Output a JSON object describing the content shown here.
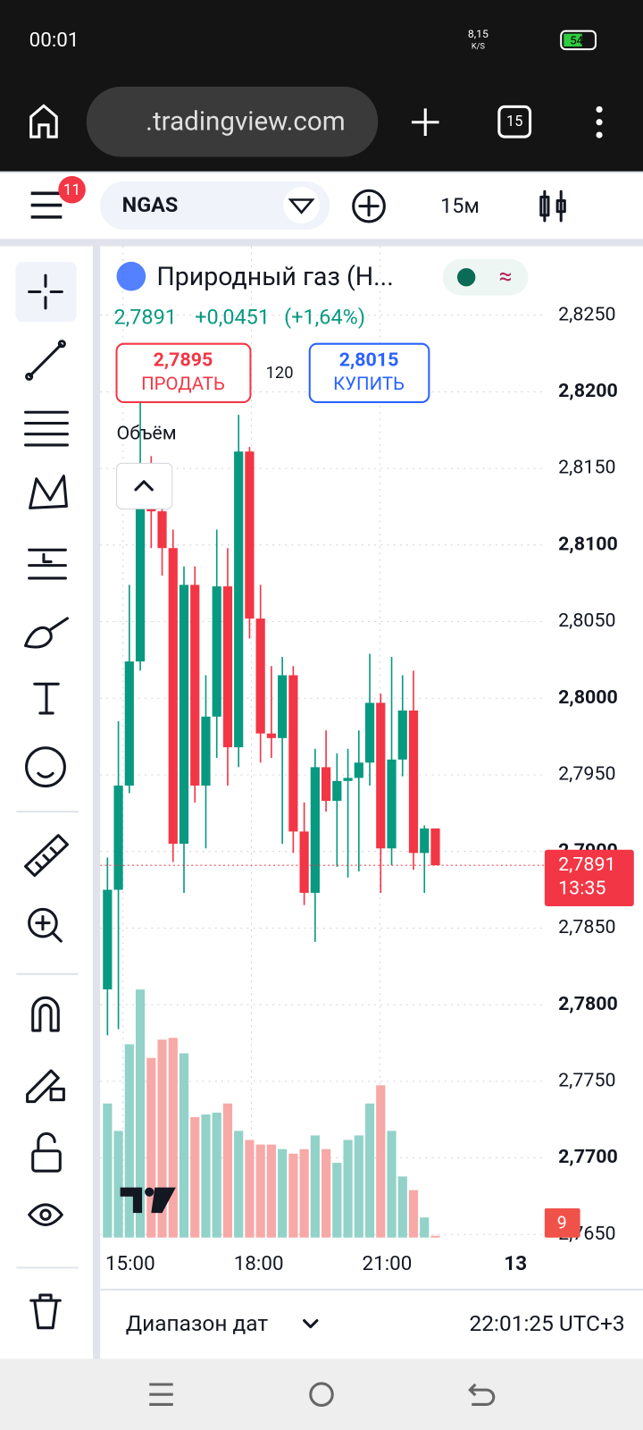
{
  "status_bar": {
    "time": "00:01",
    "speed": "8,15",
    "speed_unit": "K/S",
    "battery": "54"
  },
  "browser": {
    "url": ".tradingview.com",
    "tabs": "15"
  },
  "toolbar": {
    "badge": "11",
    "symbol": "NGAS",
    "interval": "15м"
  },
  "legend": {
    "title": "Природный газ (Н...",
    "price": "2,7891",
    "change": "+0,0451",
    "change_pct": "(+1,64%)",
    "sell_price": "2,7895",
    "sell_label": "ПРОДАТЬ",
    "spread": "120",
    "buy_price": "2,8015",
    "buy_label": "КУПИТЬ",
    "volume_label": "Объём"
  },
  "chart_data": {
    "type": "candlestick",
    "open": [
      2.781,
      2.7875,
      2.7943,
      2.8024,
      2.8129,
      2.8122,
      2.8098,
      2.7905,
      2.8074,
      2.7943,
      2.7988,
      2.8073,
      2.7968,
      2.8161,
      2.8052,
      2.7977,
      2.7974,
      2.8015,
      2.7913,
      2.7873,
      2.7955,
      2.7933,
      2.7946,
      2.7948,
      2.7958,
      2.7997,
      2.7902,
      2.796,
      2.7992,
      2.7899,
      2.7915
    ],
    "high": [
      2.7896,
      2.7985,
      2.8074,
      2.8193,
      2.8158,
      2.8134,
      2.811,
      2.8086,
      2.8086,
      2.8015,
      2.811,
      2.8098,
      2.8185,
      2.8164,
      2.8074,
      2.8021,
      2.8027,
      2.8021,
      2.7932,
      2.7967,
      2.7979,
      2.7964,
      2.7967,
      2.7979,
      2.8029,
      2.8003,
      2.8027,
      2.8015,
      2.8018,
      2.7917,
      2.7915
    ],
    "low": [
      2.778,
      2.7784,
      2.7938,
      2.8018,
      2.8098,
      2.808,
      2.7893,
      2.7873,
      2.7932,
      2.7902,
      2.7961,
      2.7943,
      2.7955,
      2.8039,
      2.7958,
      2.7961,
      2.7905,
      2.7899,
      2.7865,
      2.7841,
      2.7926,
      2.789,
      2.7883,
      2.7887,
      2.7943,
      2.7873,
      2.7891,
      2.7949,
      2.7888,
      2.7873,
      2.7891
    ],
    "close": [
      2.7875,
      2.7943,
      2.8024,
      2.8129,
      2.8122,
      2.8098,
      2.7905,
      2.8074,
      2.7943,
      2.7988,
      2.8073,
      2.7968,
      2.8161,
      2.8052,
      2.7977,
      2.7974,
      2.8015,
      2.7913,
      2.7873,
      2.7955,
      2.7933,
      2.7946,
      2.7948,
      2.7958,
      2.7997,
      2.7902,
      2.796,
      2.7992,
      2.7899,
      2.7915,
      2.7891
    ],
    "volume": [
      147,
      117,
      212,
      272,
      197,
      217,
      219,
      202,
      132,
      135,
      137,
      147,
      117,
      107,
      102,
      102,
      97,
      92,
      97,
      112,
      97,
      82,
      107,
      112,
      147,
      167,
      117,
      67,
      52,
      22,
      2
    ],
    "volume_lim": [
      0,
      1087
    ],
    "ylim": [
      2.7648,
      2.8295
    ],
    "yticks": [
      {
        "value": 2.825,
        "label": "2,8250"
      },
      {
        "value": 2.82,
        "label": "2,8200"
      },
      {
        "value": 2.815,
        "label": "2,8150"
      },
      {
        "value": 2.81,
        "label": "2,8100"
      },
      {
        "value": 2.805,
        "label": "2,8050"
      },
      {
        "value": 2.8,
        "label": "2,8000"
      },
      {
        "value": 2.795,
        "label": "2,7950"
      },
      {
        "value": 2.79,
        "label": "2,7900"
      },
      {
        "value": 2.785,
        "label": "2,7850"
      },
      {
        "value": 2.78,
        "label": "2,7800"
      },
      {
        "value": 2.775,
        "label": "2,7750"
      },
      {
        "value": 2.77,
        "label": "2,7700"
      },
      {
        "value": 2.765,
        "label": "2,7650"
      }
    ],
    "x_labels": [
      "15:00",
      "18:00",
      "21:00",
      "13"
    ],
    "last_price": {
      "value": 2.7891,
      "label": "2,7891"
    },
    "countdown": "13:35",
    "up_color": "#089981",
    "down_color": "#f23645",
    "up_volume_color": "#92d2c9",
    "down_volume_color": "#f7a9a7",
    "grid": true,
    "badge": "9"
  },
  "footer": {
    "range": "Диапазон дат",
    "clock": "22:01:25 UTC+3"
  }
}
